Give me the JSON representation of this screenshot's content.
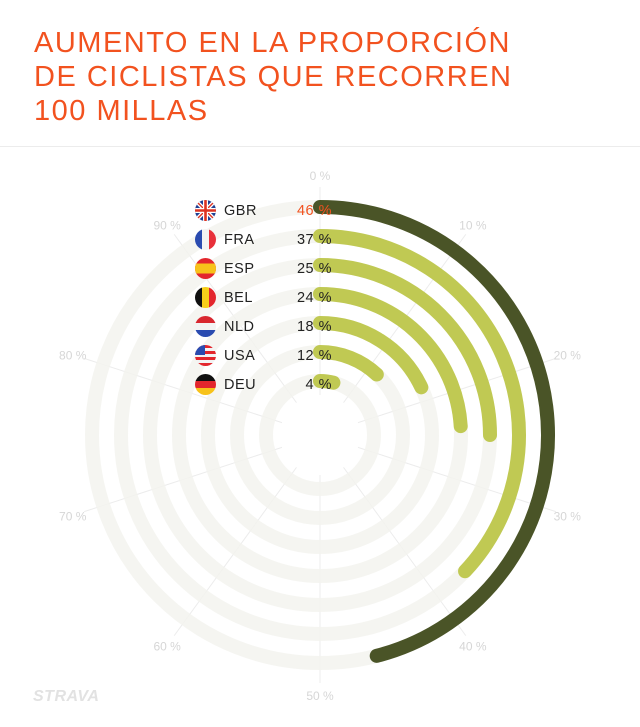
{
  "title": "AUMENTO EN LA PROPORCIÓN DE CICLISTAS QUE RECORREN 100 MILLAS",
  "logo": "STRAVA",
  "colors": {
    "title": "#f2521f",
    "highlight_bar": "#4a5427",
    "bar": "#c0c953",
    "track": "#f3f3ef",
    "highlight_text": "#f2521f"
  },
  "chart_data": {
    "type": "radial-bar",
    "title": "AUMENTO EN LA PROPORCIÓN DE CICLISTAS QUE RECORREN 100 MILLAS",
    "categories": [
      "GBR",
      "FRA",
      "ESP",
      "BEL",
      "NLD",
      "USA",
      "DEU"
    ],
    "values": [
      46,
      37,
      25,
      24,
      18,
      12,
      4
    ],
    "value_labels": [
      "46 %",
      "37 %",
      "25 %",
      "24 %",
      "18 %",
      "12 %",
      "4 %"
    ],
    "flags": [
      "uk-flag-icon",
      "france-flag-icon",
      "spain-flag-icon",
      "belgium-flag-icon",
      "netherlands-flag-icon",
      "usa-flag-icon",
      "germany-flag-icon"
    ],
    "axis_range": [
      0,
      100
    ],
    "tick_labels": [
      "0 %",
      "10 %",
      "20 %",
      "30 %",
      "40 %",
      "50 %",
      "60 %",
      "70 %",
      "80 %",
      "90 %"
    ],
    "highlight": "GBR"
  }
}
